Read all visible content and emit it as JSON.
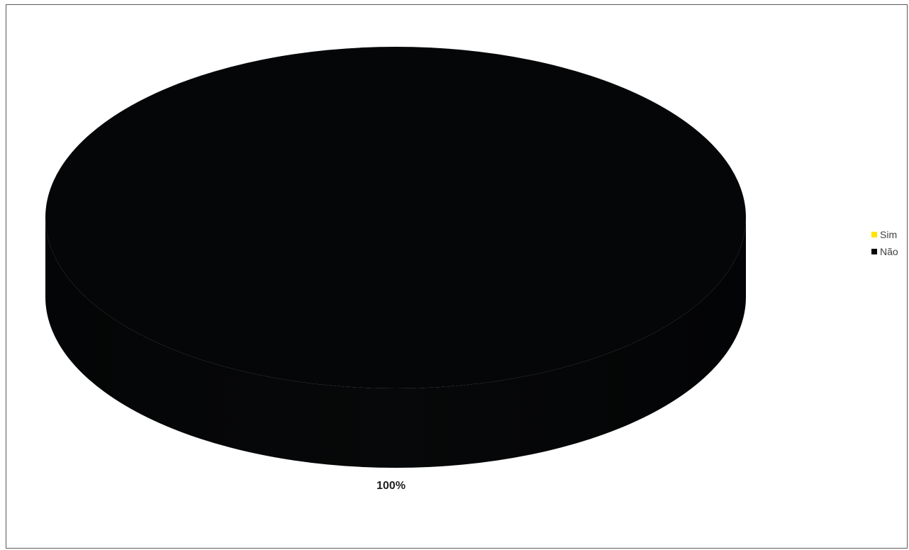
{
  "chart_data": {
    "type": "pie",
    "style": "3d",
    "categories": [
      "Sim",
      "Não"
    ],
    "values": [
      0,
      100
    ],
    "colors": [
      "#ffe400",
      "#050608"
    ],
    "data_labels": [
      "100%"
    ],
    "legend_position": "right"
  }
}
